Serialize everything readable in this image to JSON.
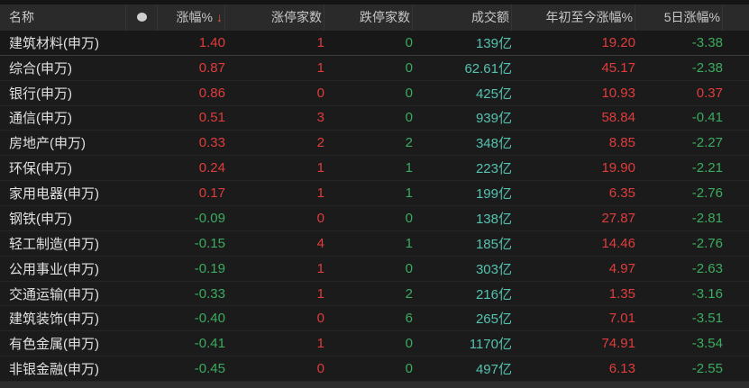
{
  "colors": {
    "up_red": "#e13c3c",
    "down_green": "#3cab5f",
    "turnover_teal": "#55c2af",
    "sort_arrow": "#e25a35",
    "header_bg": "#2a2a2a",
    "background": "#1b1b1b"
  },
  "table": {
    "headers": {
      "name": "名称",
      "dot": "dot-indicator",
      "change": "涨幅%",
      "sort_arrow": "↓",
      "limit_up": "涨停家数",
      "limit_down": "跌停家数",
      "turnover": "成交额",
      "ytd": "年初至今涨幅%",
      "d5": "5日涨幅%"
    },
    "sorted_by": "涨幅% descending",
    "rows": [
      {
        "name": "建筑材料(申万)",
        "change": "1.40",
        "limit_up": "1",
        "limit_down": "0",
        "turnover": "139亿",
        "ytd": "19.20",
        "d5": "-3.38"
      },
      {
        "name": "综合(申万)",
        "change": "0.87",
        "limit_up": "1",
        "limit_down": "0",
        "turnover": "62.61亿",
        "ytd": "45.17",
        "d5": "-2.38"
      },
      {
        "name": "银行(申万)",
        "change": "0.86",
        "limit_up": "0",
        "limit_down": "0",
        "turnover": "425亿",
        "ytd": "10.93",
        "d5": "0.37"
      },
      {
        "name": "通信(申万)",
        "change": "0.51",
        "limit_up": "3",
        "limit_down": "0",
        "turnover": "939亿",
        "ytd": "58.84",
        "d5": "-0.41"
      },
      {
        "name": "房地产(申万)",
        "change": "0.33",
        "limit_up": "2",
        "limit_down": "2",
        "turnover": "348亿",
        "ytd": "8.85",
        "d5": "-2.27"
      },
      {
        "name": "环保(申万)",
        "change": "0.24",
        "limit_up": "1",
        "limit_down": "1",
        "turnover": "223亿",
        "ytd": "19.90",
        "d5": "-2.21"
      },
      {
        "name": "家用电器(申万)",
        "change": "0.17",
        "limit_up": "1",
        "limit_down": "1",
        "turnover": "199亿",
        "ytd": "6.35",
        "d5": "-2.76"
      },
      {
        "name": "钢铁(申万)",
        "change": "-0.09",
        "limit_up": "0",
        "limit_down": "0",
        "turnover": "138亿",
        "ytd": "27.87",
        "d5": "-2.81"
      },
      {
        "name": "轻工制造(申万)",
        "change": "-0.15",
        "limit_up": "4",
        "limit_down": "1",
        "turnover": "185亿",
        "ytd": "14.46",
        "d5": "-2.76"
      },
      {
        "name": "公用事业(申万)",
        "change": "-0.19",
        "limit_up": "1",
        "limit_down": "0",
        "turnover": "303亿",
        "ytd": "4.97",
        "d5": "-2.63"
      },
      {
        "name": "交通运输(申万)",
        "change": "-0.33",
        "limit_up": "1",
        "limit_down": "2",
        "turnover": "216亿",
        "ytd": "1.35",
        "d5": "-3.16"
      },
      {
        "name": "建筑装饰(申万)",
        "change": "-0.40",
        "limit_up": "0",
        "limit_down": "6",
        "turnover": "265亿",
        "ytd": "7.01",
        "d5": "-3.51"
      },
      {
        "name": "有色金属(申万)",
        "change": "-0.41",
        "limit_up": "1",
        "limit_down": "0",
        "turnover": "1170亿",
        "ytd": "74.91",
        "d5": "-3.54"
      },
      {
        "name": "非银金融(申万)",
        "change": "-0.45",
        "limit_up": "0",
        "limit_down": "0",
        "turnover": "497亿",
        "ytd": "6.13",
        "d5": "-2.55"
      }
    ]
  }
}
